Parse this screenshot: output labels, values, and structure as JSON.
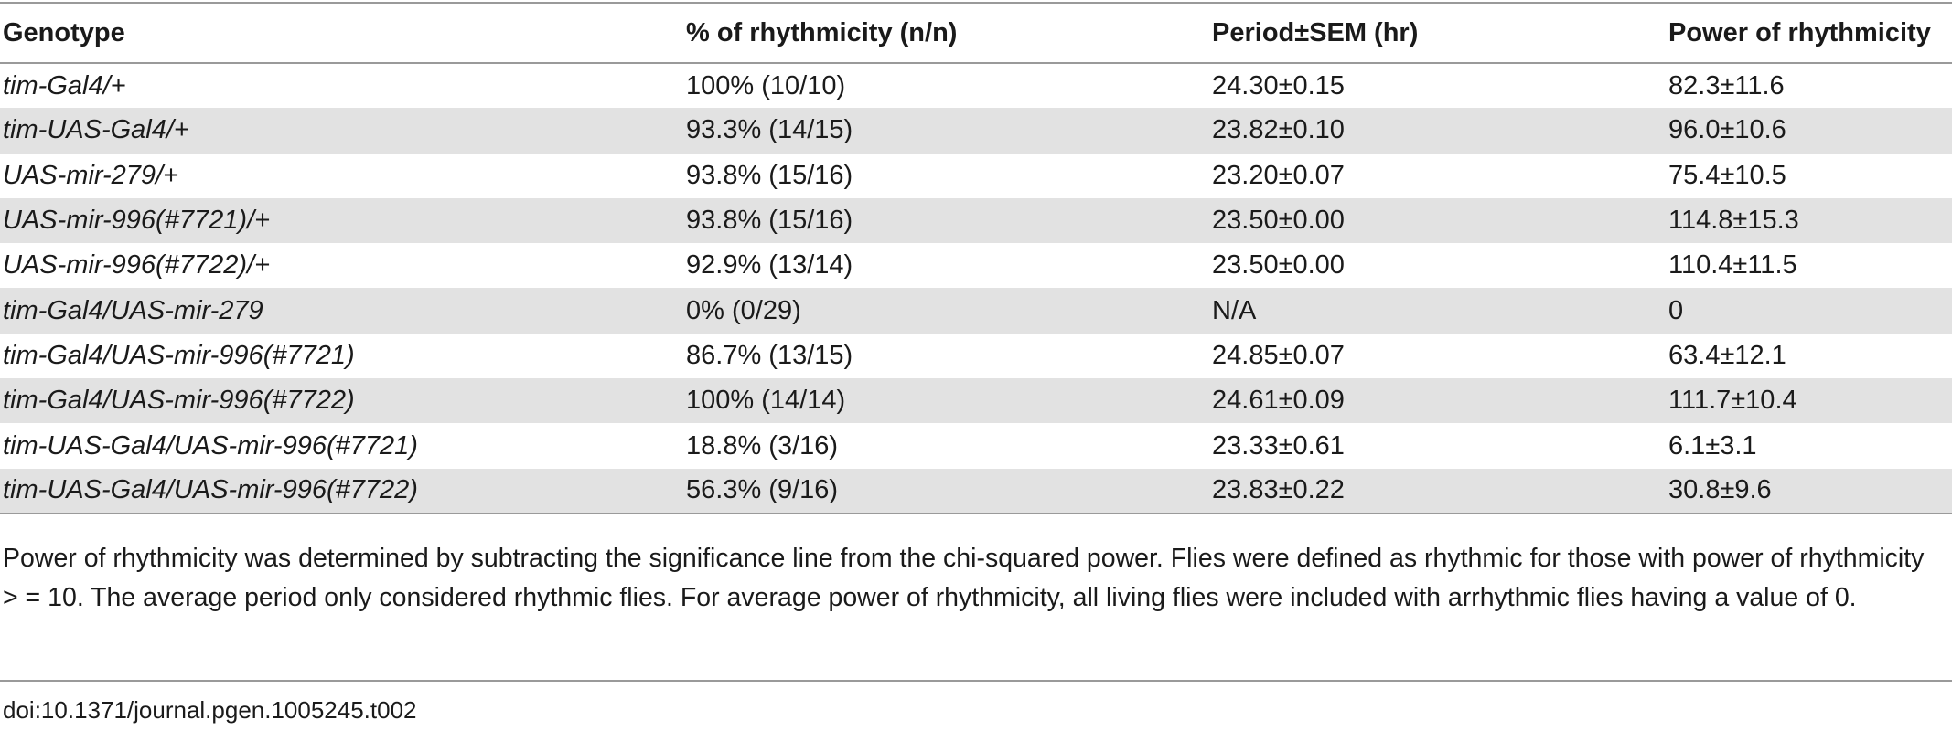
{
  "table": {
    "headers": [
      "Genotype",
      "% of rhythmicity (n/n)",
      "Period±SEM (hr)",
      "Power of rhythmicity"
    ],
    "rows": [
      [
        "tim-Gal4/+",
        "100% (10/10)",
        "24.30±0.15",
        "82.3±11.6"
      ],
      [
        "tim-UAS-Gal4/+",
        "93.3% (14/15)",
        "23.82±0.10",
        "96.0±10.6"
      ],
      [
        "UAS-mir-279/+",
        "93.8% (15/16)",
        "23.20±0.07",
        "75.4±10.5"
      ],
      [
        "UAS-mir-996(#7721)/+",
        "93.8% (15/16)",
        "23.50±0.00",
        "114.8±15.3"
      ],
      [
        "UAS-mir-996(#7722)/+",
        "92.9% (13/14)",
        "23.50±0.00",
        "110.4±11.5"
      ],
      [
        "tim-Gal4/UAS-mir-279",
        "0% (0/29)",
        "N/A",
        "0"
      ],
      [
        "tim-Gal4/UAS-mir-996(#7721)",
        "86.7% (13/15)",
        "24.85±0.07",
        "63.4±12.1"
      ],
      [
        "tim-Gal4/UAS-mir-996(#7722)",
        "100% (14/14)",
        "24.61±0.09",
        "111.7±10.4"
      ],
      [
        "tim-UAS-Gal4/UAS-mir-996(#7721)",
        "18.8% (3/16)",
        "23.33±0.61",
        "6.1±3.1"
      ],
      [
        "tim-UAS-Gal4/UAS-mir-996(#7722)",
        "56.3% (9/16)",
        "23.83±0.22",
        "30.8±9.6"
      ]
    ]
  },
  "footnote": "Power of rhythmicity was determined by subtracting the significance line from the chi-squared power. Flies were defined as rhythmic for those with power of rhythmicity > = 10. The average period only considered rhythmic flies. For average power of rhythmicity, all living flies were included with arrhythmic flies having a value of 0.",
  "doi": "doi:10.1371/journal.pgen.1005245.t002",
  "colors": {
    "stripe": "#e2e2e2",
    "rule": "#9a9a9a",
    "text": "#1a1a1a"
  }
}
